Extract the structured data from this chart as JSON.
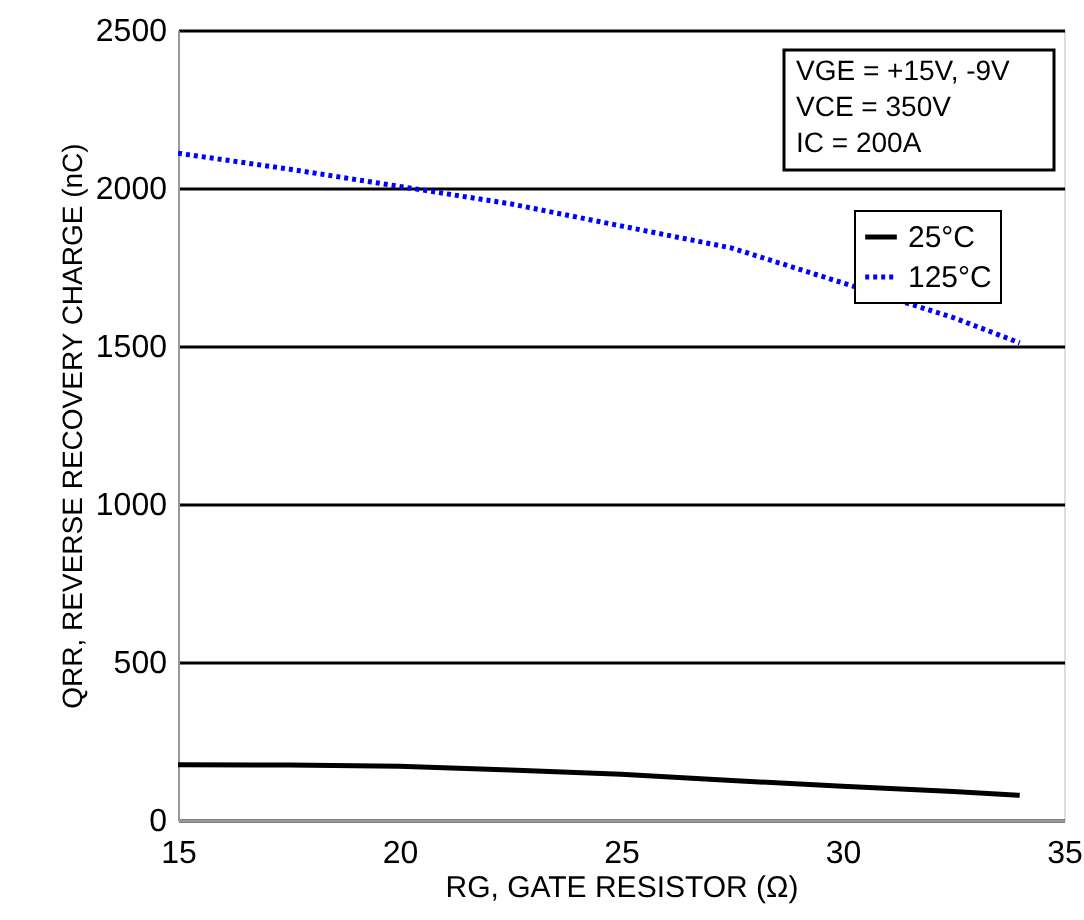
{
  "chart_data": {
    "type": "line",
    "xlabel": "RG, GATE RESISTOR (Ω)",
    "ylabel": "QRR, REVERSE RECOVERY CHARGE (nC)",
    "xlim": [
      15,
      35
    ],
    "xticks": [
      15,
      20,
      25,
      30,
      35
    ],
    "ylim": [
      0,
      2500
    ],
    "yticks": [
      0,
      500,
      1000,
      1500,
      2000,
      2500
    ],
    "grid": "y",
    "legend": "top right",
    "marker": "none",
    "series": [
      {
        "name": "25°C",
        "color": "#000000",
        "line_style": "solid",
        "x": [
          15,
          17.5,
          20,
          22.5,
          25,
          27.5,
          30,
          32.5,
          34
        ],
        "values": [
          175,
          174,
          170,
          158,
          145,
          125,
          107,
          90,
          78
        ]
      },
      {
        "name": "125°C",
        "color": "#0000ff",
        "line_style": "dotted",
        "x": [
          15,
          17.5,
          20,
          22.5,
          25,
          27.5,
          30,
          32.5,
          34
        ],
        "values": [
          2110,
          2060,
          2005,
          1950,
          1880,
          1810,
          1700,
          1590,
          1510
        ]
      }
    ],
    "annotations": [
      "VGE = +15V, -9V",
      "VCE = 350V",
      "IC = 200A"
    ]
  }
}
